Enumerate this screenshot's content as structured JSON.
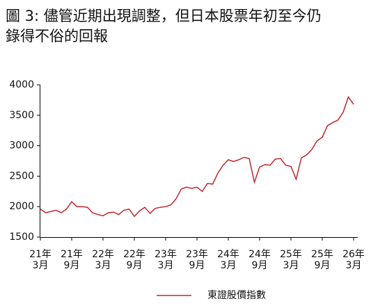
{
  "chart_data": {
    "type": "line",
    "title_lines": [
      "圖 3: 儘管近期出現調整，但日本股票年初至今仍",
      "錄得不俗的回報"
    ],
    "x": [
      "2021-03",
      "2021-04",
      "2021-05",
      "2021-06",
      "2021-07",
      "2021-08",
      "2021-09",
      "2021-10",
      "2021-11",
      "2021-12",
      "2022-01",
      "2022-02",
      "2022-03",
      "2022-04",
      "2022-05",
      "2022-06",
      "2022-07",
      "2022-08",
      "2022-09",
      "2022-10",
      "2022-11",
      "2022-12",
      "2023-01",
      "2023-02",
      "2023-03",
      "2023-04",
      "2023-05",
      "2023-06",
      "2023-07",
      "2023-08",
      "2023-09",
      "2023-10",
      "2023-11",
      "2023-12",
      "2024-01",
      "2024-02",
      "2024-03",
      "2024-04",
      "2024-05",
      "2024-06",
      "2024-07",
      "2024-08",
      "2024-09",
      "2024-10",
      "2024-11",
      "2024-12",
      "2025-01",
      "2025-02",
      "2025-03",
      "2025-04",
      "2025-05",
      "2025-06",
      "2025-07",
      "2025-08",
      "2025-09",
      "2025-10",
      "2025-11",
      "2025-12",
      "2026-01",
      "2026-02",
      "2026-03"
    ],
    "series": [
      {
        "name": "東證股價指數",
        "color": "#c0272d",
        "values": [
          1960,
          1900,
          1920,
          1940,
          1900,
          1960,
          2080,
          2000,
          2000,
          1990,
          1900,
          1870,
          1850,
          1900,
          1910,
          1870,
          1940,
          1960,
          1840,
          1930,
          1990,
          1890,
          1970,
          1990,
          2000,
          2030,
          2130,
          2290,
          2320,
          2300,
          2320,
          2250,
          2380,
          2370,
          2550,
          2680,
          2770,
          2740,
          2770,
          2810,
          2790,
          2400,
          2650,
          2690,
          2680,
          2780,
          2790,
          2680,
          2660,
          2450,
          2800,
          2850,
          2940,
          3080,
          3140,
          3330,
          3380,
          3420,
          3550,
          3800,
          3680
        ]
      }
    ],
    "ylim": [
      1500,
      4000
    ],
    "yticks": [
      1500,
      2000,
      2500,
      3000,
      3500,
      4000
    ],
    "xticks": [
      {
        "value": "2021-03",
        "label": [
          "21年",
          "3月"
        ]
      },
      {
        "value": "2021-09",
        "label": [
          "21年",
          "9月"
        ]
      },
      {
        "value": "2022-03",
        "label": [
          "22年",
          "3月"
        ]
      },
      {
        "value": "2022-09",
        "label": [
          "22年",
          "9月"
        ]
      },
      {
        "value": "2023-03",
        "label": [
          "23年",
          "3月"
        ]
      },
      {
        "value": "2023-09",
        "label": [
          "23年",
          "9月"
        ]
      },
      {
        "value": "2024-03",
        "label": [
          "24年",
          "3月"
        ]
      },
      {
        "value": "2024-09",
        "label": [
          "24年",
          "9月"
        ]
      },
      {
        "value": "2025-03",
        "label": [
          "25年",
          "3月"
        ]
      },
      {
        "value": "2025-09",
        "label": [
          "25年",
          "9月"
        ]
      },
      {
        "value": "2026-03",
        "label": [
          "26年",
          "3月"
        ]
      }
    ],
    "grid": false
  }
}
